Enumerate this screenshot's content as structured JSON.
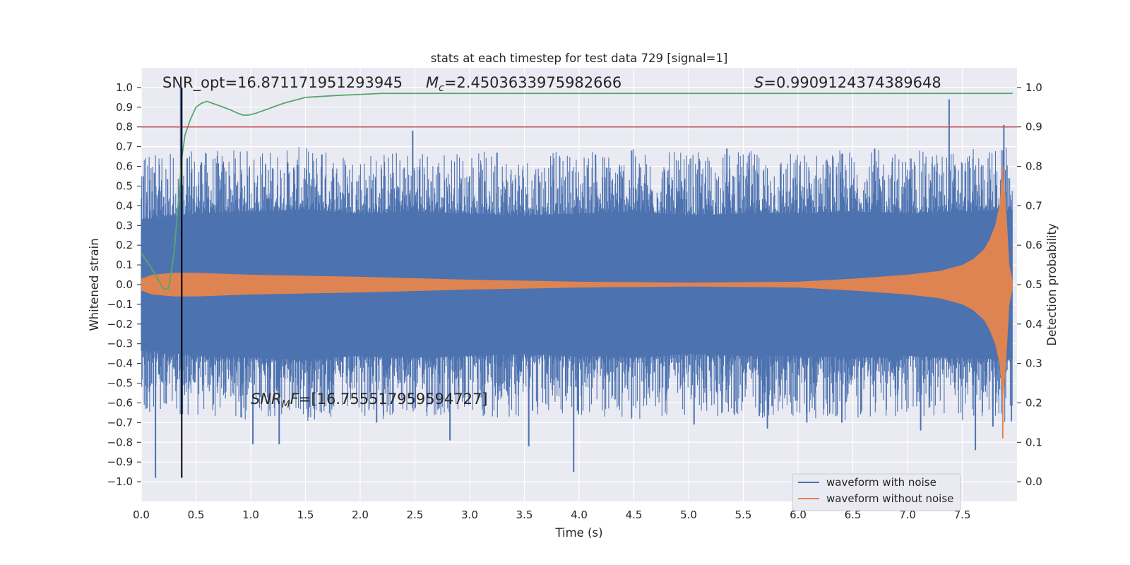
{
  "chart_data": {
    "type": "line",
    "title": "stats at each timestep for test data 729 [signal=1]",
    "xlabel": "Time (s)",
    "ylabel": "Whitened strain",
    "y2label": "Detection probability",
    "xlim": [
      0.0,
      8.0
    ],
    "ylim": [
      -1.1,
      1.1
    ],
    "y2lim": [
      -0.05,
      1.05
    ],
    "xticks": [
      "0.0",
      "0.5",
      "1.0",
      "1.5",
      "2.0",
      "2.5",
      "3.0",
      "3.5",
      "4.0",
      "4.5",
      "5.0",
      "5.5",
      "6.0",
      "6.5",
      "7.0",
      "7.5"
    ],
    "yticks": [
      "1.0",
      "0.9",
      "0.8",
      "0.7",
      "0.6",
      "0.5",
      "0.4",
      "0.3",
      "0.2",
      "0.1",
      "0.0",
      "−0.1",
      "−0.2",
      "−0.3",
      "−0.4",
      "−0.5",
      "−0.6",
      "−0.7",
      "−0.8",
      "−0.9",
      "−1.0"
    ],
    "y2ticks": [
      "1.0",
      "0.9",
      "0.8",
      "0.7",
      "0.6",
      "0.5",
      "0.4",
      "0.3",
      "0.2",
      "0.1",
      "0.0"
    ],
    "grid": true,
    "legend_position": "lower-right",
    "series": [
      {
        "name": "waveform with noise",
        "color": "#4c72b0",
        "axis": "left",
        "envelope": {
          "x": [
            0.0,
            0.5,
            1.0,
            1.5,
            2.0,
            2.5,
            3.0,
            3.5,
            4.0,
            4.5,
            5.0,
            5.5,
            6.0,
            6.5,
            7.0,
            7.5,
            7.96
          ],
          "top": [
            0.33,
            0.36,
            0.37,
            0.38,
            0.36,
            0.37,
            0.36,
            0.35,
            0.36,
            0.37,
            0.35,
            0.36,
            0.36,
            0.37,
            0.36,
            0.37,
            0.38
          ],
          "bottom": [
            -0.33,
            -0.36,
            -0.37,
            -0.38,
            -0.36,
            -0.37,
            -0.36,
            -0.35,
            -0.36,
            -0.37,
            -0.35,
            -0.36,
            -0.36,
            -0.37,
            -0.36,
            -0.37,
            -0.38
          ]
        },
        "spikes": [
          {
            "x": 0.13,
            "y": -0.98
          },
          {
            "x": 0.36,
            "y": 1.0
          },
          {
            "x": 0.42,
            "y": 0.64
          },
          {
            "x": 1.02,
            "y": -0.81
          },
          {
            "x": 1.26,
            "y": -0.81
          },
          {
            "x": 2.48,
            "y": 0.78
          },
          {
            "x": 2.82,
            "y": -0.79
          },
          {
            "x": 3.54,
            "y": -0.82
          },
          {
            "x": 3.95,
            "y": -0.95
          },
          {
            "x": 4.48,
            "y": 0.68
          },
          {
            "x": 5.05,
            "y": -0.71
          },
          {
            "x": 5.35,
            "y": 0.69
          },
          {
            "x": 6.08,
            "y": -0.7
          },
          {
            "x": 6.7,
            "y": 0.69
          },
          {
            "x": 7.38,
            "y": 0.94
          },
          {
            "x": 7.62,
            "y": -0.84
          },
          {
            "x": 7.88,
            "y": 0.81
          },
          {
            "x": 0.55,
            "y": 0.62
          },
          {
            "x": 1.65,
            "y": 0.66
          },
          {
            "x": 2.15,
            "y": -0.7
          },
          {
            "x": 3.25,
            "y": 0.67
          },
          {
            "x": 4.15,
            "y": 0.66
          },
          {
            "x": 5.72,
            "y": -0.73
          },
          {
            "x": 6.4,
            "y": -0.7
          },
          {
            "x": 7.12,
            "y": -0.74
          },
          {
            "x": 7.78,
            "y": -0.72
          }
        ]
      },
      {
        "name": "waveform without noise",
        "color": "#dd8452",
        "axis": "left",
        "envelope": {
          "x": [
            0.0,
            0.1,
            0.3,
            0.5,
            1.0,
            2.0,
            3.0,
            4.0,
            5.0,
            6.0,
            6.5,
            7.0,
            7.3,
            7.5,
            7.6,
            7.7,
            7.75,
            7.8,
            7.84,
            7.87,
            7.9,
            7.93,
            7.96
          ],
          "amplitude": [
            0.03,
            0.05,
            0.06,
            0.06,
            0.05,
            0.04,
            0.025,
            0.015,
            0.01,
            0.015,
            0.03,
            0.05,
            0.07,
            0.1,
            0.13,
            0.18,
            0.23,
            0.3,
            0.4,
            0.6,
            0.4,
            0.1,
            0.02
          ]
        }
      },
      {
        "name": "",
        "color": "#55a868",
        "axis": "right",
        "x": [
          0.0,
          0.05,
          0.12,
          0.2,
          0.25,
          0.3,
          0.33,
          0.37,
          0.4,
          0.45,
          0.5,
          0.55,
          0.6,
          0.65,
          0.7,
          0.8,
          0.88,
          0.93,
          0.98,
          1.05,
          1.15,
          1.3,
          1.5,
          1.8,
          2.2,
          3.0,
          4.0,
          5.0,
          6.0,
          7.0,
          7.96
        ],
        "values": [
          0.58,
          0.56,
          0.53,
          0.49,
          0.49,
          0.58,
          0.68,
          0.82,
          0.88,
          0.92,
          0.95,
          0.96,
          0.965,
          0.96,
          0.955,
          0.945,
          0.935,
          0.93,
          0.93,
          0.935,
          0.945,
          0.96,
          0.975,
          0.98,
          0.985,
          0.985,
          0.985,
          0.985,
          0.985,
          0.985,
          0.985
        ]
      }
    ],
    "threshold_line": {
      "value": 0.9,
      "axis": "right",
      "color": "#c44e52"
    },
    "marker_line": {
      "x": 0.37,
      "y_from": -0.98,
      "y_to": 1.0,
      "color": "#000000"
    },
    "annotations": {
      "snr_opt": "SNR_opt=16.871171951293945",
      "mc_symbol": "M",
      "mc_sub": "c",
      "mc_value": "=2.4503633975982666",
      "s_symbol": "S",
      "s_value": "=0.9909124374389648",
      "snr_mf_symbol": "SNR",
      "snr_mf_sub": "M",
      "snr_mf_tail": "F",
      "snr_mf_value": "=[16.755517959594727]"
    },
    "colors": {
      "axes_bg": "#eaeaf2",
      "grid": "#ffffff",
      "text": "#262626"
    }
  }
}
